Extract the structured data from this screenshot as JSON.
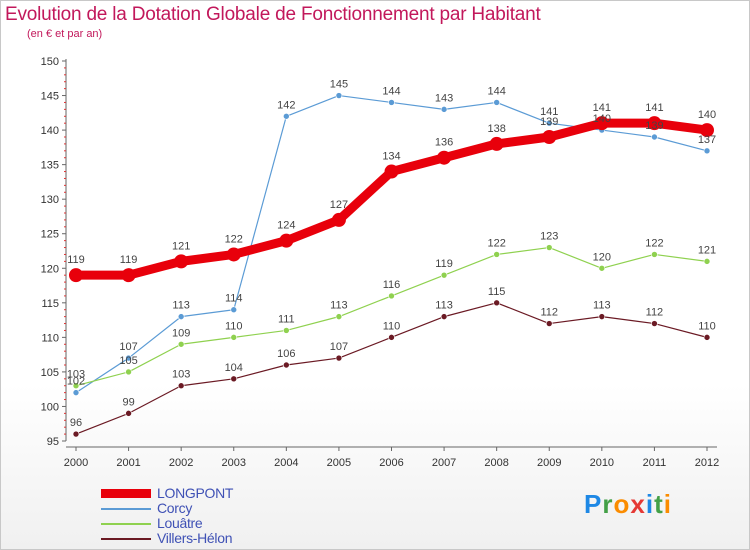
{
  "title": "Evolution de la Dotation Globale de Fonctionnement par Habitant",
  "subtitle": "(en € et par an)",
  "logo": {
    "text": "Proxiti",
    "letters": [
      "P",
      "r",
      "o",
      "x",
      "i",
      "t",
      "i"
    ],
    "colors": [
      "#1e88e5",
      "#43a047",
      "#fb8c00",
      "#e53935",
      "#1e88e5",
      "#43a047",
      "#fb8c00"
    ]
  },
  "chart_data": {
    "type": "line",
    "x": [
      "2000",
      "2001",
      "2002",
      "2003",
      "2004",
      "2005",
      "2006",
      "2007",
      "2008",
      "2009",
      "2010",
      "2011",
      "2012"
    ],
    "ylim": [
      95,
      150
    ],
    "yticks": [
      95,
      100,
      105,
      110,
      115,
      120,
      125,
      130,
      135,
      140,
      145,
      150
    ],
    "grid": false,
    "legend_position": "bottom-left",
    "series": [
      {
        "name": "LONGPONT",
        "color": "#e8000b",
        "values": [
          119,
          119,
          121,
          122,
          124,
          127,
          134,
          136,
          138,
          139,
          141,
          141,
          140
        ]
      },
      {
        "name": "Corcy",
        "color": "#5b9bd5",
        "values": [
          102,
          107,
          113,
          114,
          142,
          145,
          144,
          143,
          144,
          141,
          140,
          139,
          137
        ]
      },
      {
        "name": "Louâtre",
        "color": "#8fd14f",
        "values": [
          103,
          105,
          109,
          110,
          111,
          113,
          116,
          119,
          122,
          123,
          120,
          122,
          121
        ]
      },
      {
        "name": "Villers-Hélon",
        "color": "#6b1a24",
        "values": [
          96,
          99,
          103,
          104,
          106,
          107,
          110,
          113,
          115,
          112,
          113,
          112,
          110
        ]
      }
    ]
  }
}
